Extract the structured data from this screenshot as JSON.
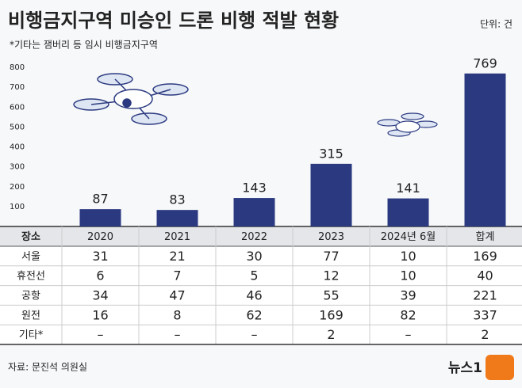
{
  "chart_data": {
    "type": "bar",
    "title": "비행금지구역 미승인 드론 비행 적발 현황",
    "subtitle": "*기타는 잼버리 등 임시 비행금지구역",
    "unit": "단위: 건",
    "categories": [
      "2020",
      "2021",
      "2022",
      "2023",
      "2024년 6월",
      "합계"
    ],
    "values": [
      87,
      83,
      143,
      315,
      141,
      769
    ],
    "color": "#2b3a80",
    "ylim": [
      0,
      800
    ],
    "yticks": [
      100,
      200,
      300,
      400,
      500,
      600,
      700,
      800
    ],
    "grid": false
  },
  "table": {
    "corner": "장소",
    "rows": [
      {
        "label": "서울",
        "cells": [
          31,
          21,
          30,
          77,
          10,
          169
        ]
      },
      {
        "label": "휴전선",
        "cells": [
          6,
          7,
          5,
          12,
          10,
          40
        ]
      },
      {
        "label": "공항",
        "cells": [
          34,
          47,
          46,
          55,
          39,
          221
        ]
      },
      {
        "label": "원전",
        "cells": [
          16,
          8,
          62,
          169,
          82,
          337
        ]
      },
      {
        "label": "기타*",
        "cells": [
          "–",
          "–",
          "–",
          2,
          "–",
          2
        ]
      }
    ]
  },
  "source": "자료: 문진석 의원실",
  "logo": "뉴스1"
}
